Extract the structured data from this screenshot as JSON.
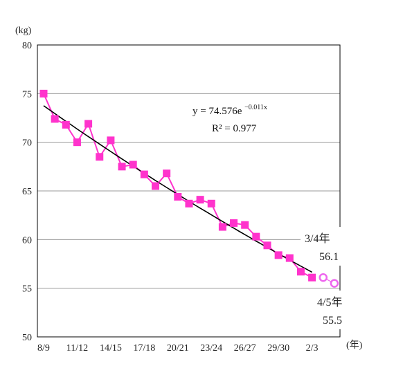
{
  "chart_data": {
    "type": "line",
    "y_unit": "(kg)",
    "x_unit": "(年)",
    "ylim": [
      50,
      80
    ],
    "y_ticks": [
      50,
      55,
      60,
      65,
      70,
      75,
      80
    ],
    "x_tick_labels": [
      "8/9",
      "11/12",
      "14/15",
      "17/18",
      "20/21",
      "23/24",
      "26/27",
      "29/30",
      "2/3"
    ],
    "x_tick_indices": [
      0,
      3,
      6,
      9,
      12,
      15,
      18,
      21,
      24
    ],
    "grid": true,
    "series": [
      {
        "marker": "square",
        "color": "#ff33cc",
        "values": [
          75.0,
          72.4,
          71.8,
          70.0,
          71.9,
          68.5,
          70.2,
          67.5,
          67.7,
          66.7,
          65.5,
          66.8,
          64.4,
          63.7,
          64.1,
          63.7,
          61.3,
          61.7,
          61.5,
          60.3,
          59.4,
          58.4,
          58.1,
          56.7,
          56.1
        ]
      },
      {
        "marker": "open-circle",
        "color": "#ee66ee",
        "start_index": 25,
        "values": [
          56.1,
          55.5
        ]
      }
    ],
    "trendline": {
      "color": "#000000",
      "equation_prefix": "y = 74.576e",
      "equation_exponent": "−0.011x",
      "r_squared": "R² = 0.977",
      "a": 74.576,
      "b": -0.011
    },
    "annotations": [
      {
        "label": "3/4年",
        "value": "56.1"
      },
      {
        "label": "4/5年",
        "value": "55.5"
      }
    ]
  }
}
